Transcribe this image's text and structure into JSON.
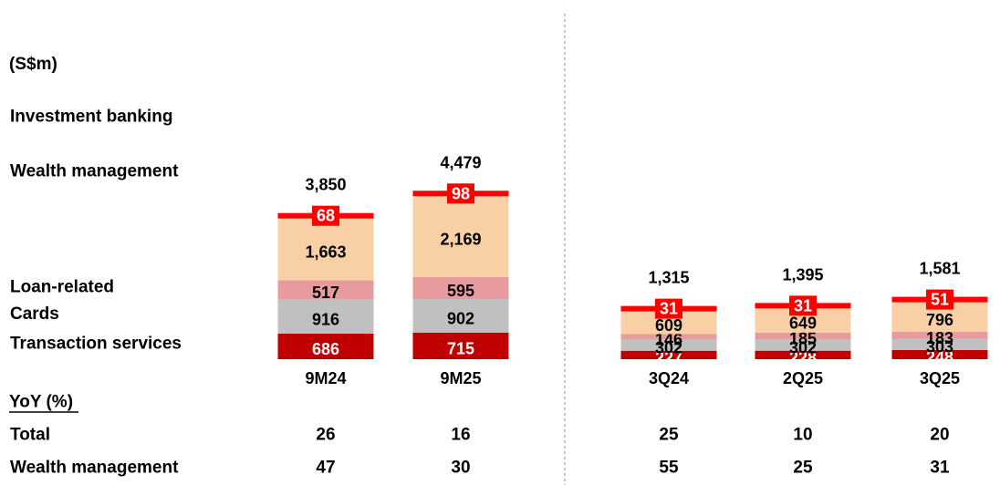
{
  "chart_data": {
    "type": "bar",
    "stacked": true,
    "unit": "(S$m)",
    "categories": [
      "9M24",
      "9M25",
      "3Q24",
      "2Q25",
      "3Q25"
    ],
    "series": [
      {
        "name": "Transaction services",
        "values": [
          686,
          715,
          227,
          228,
          248
        ],
        "color": "#c00000",
        "label_color": "#ffffff"
      },
      {
        "name": "Cards",
        "values": [
          916,
          902,
          302,
          302,
          303
        ],
        "color": "#c0c0c0",
        "label_color": "#000000"
      },
      {
        "name": "Loan-related",
        "values": [
          517,
          595,
          146,
          185,
          183
        ],
        "color": "#e89b9f",
        "label_color": "#000000"
      },
      {
        "name": "Wealth management",
        "values": [
          1663,
          2169,
          609,
          649,
          796
        ],
        "color": "#f9cfa5",
        "label_color": "#000000"
      },
      {
        "name": "Investment banking",
        "values": [
          68,
          98,
          31,
          31,
          51
        ],
        "color": "#ff0000",
        "label_color": "#ffffff"
      }
    ],
    "totals": [
      "3,850",
      "4,479",
      "1,315",
      "1,395",
      "1,581"
    ],
    "value_labels": [
      [
        "686",
        "715",
        "227",
        "228",
        "248"
      ],
      [
        "916",
        "902",
        "302",
        "302",
        "303"
      ],
      [
        "517",
        "595",
        "146",
        "185",
        "183"
      ],
      [
        "1,663",
        "2,169",
        "609",
        "649",
        "796"
      ],
      [
        "68",
        "98",
        "31",
        "31",
        "51"
      ]
    ],
    "legend_order": [
      "Investment banking",
      "Wealth management",
      "Loan-related",
      "Cards",
      "Transaction services"
    ],
    "yoy": {
      "title": "YoY (%)",
      "rows": [
        {
          "label": "Total",
          "values": [
            "26",
            "16",
            "25",
            "10",
            "20"
          ]
        },
        {
          "label": "Wealth management",
          "values": [
            "47",
            "30",
            "55",
            "25",
            "31"
          ]
        }
      ]
    }
  }
}
